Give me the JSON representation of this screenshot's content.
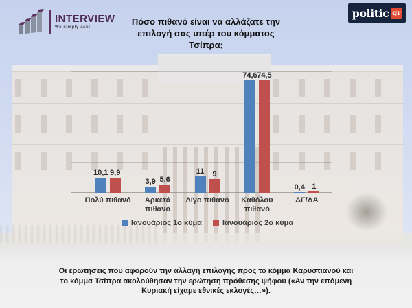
{
  "branding": {
    "interview": {
      "name": "INTERVIEW",
      "tagline": "We simply ask!"
    },
    "politic": {
      "name": "politic",
      "suffix": "gr"
    }
  },
  "chart_data": {
    "type": "bar",
    "title": "Πόσο πιθανό είναι να αλλάζατε την επιλογή σας υπέρ του κόμματος Τσίπρα;",
    "categories": [
      "Πολύ πιθανό",
      "Αρκετά πιθανό",
      "Λίγο πιθανό",
      "Καθόλου πιθανό",
      "ΔΓ/ΔΑ"
    ],
    "series": [
      {
        "name": "Ιανουάριος 1ο κύμα",
        "color": "#4f81bd",
        "values": [
          10.1,
          3.9,
          11,
          74.6,
          0.4
        ]
      },
      {
        "name": "Ιανουάριος 2ο κύμα",
        "color": "#c0504d",
        "values": [
          9.9,
          5.6,
          9,
          74.5,
          1
        ]
      }
    ],
    "value_label_decimal_separator": ",",
    "ylim": [
      0,
      80
    ],
    "gridline_step": 20,
    "grid": true,
    "legend_position": "bottom"
  },
  "footer_note": "Οι ερωτήσεις που αφορούν την αλλαγή επιλογής προς το κόμμα Καρυστιανού και το κόμμα Τσίπρα ακολούθησαν την ερώτηση πρόθεσης ψήφου («Αν την επόμενη Κυριακή είχαμε εθνικές εκλογές…»)."
}
